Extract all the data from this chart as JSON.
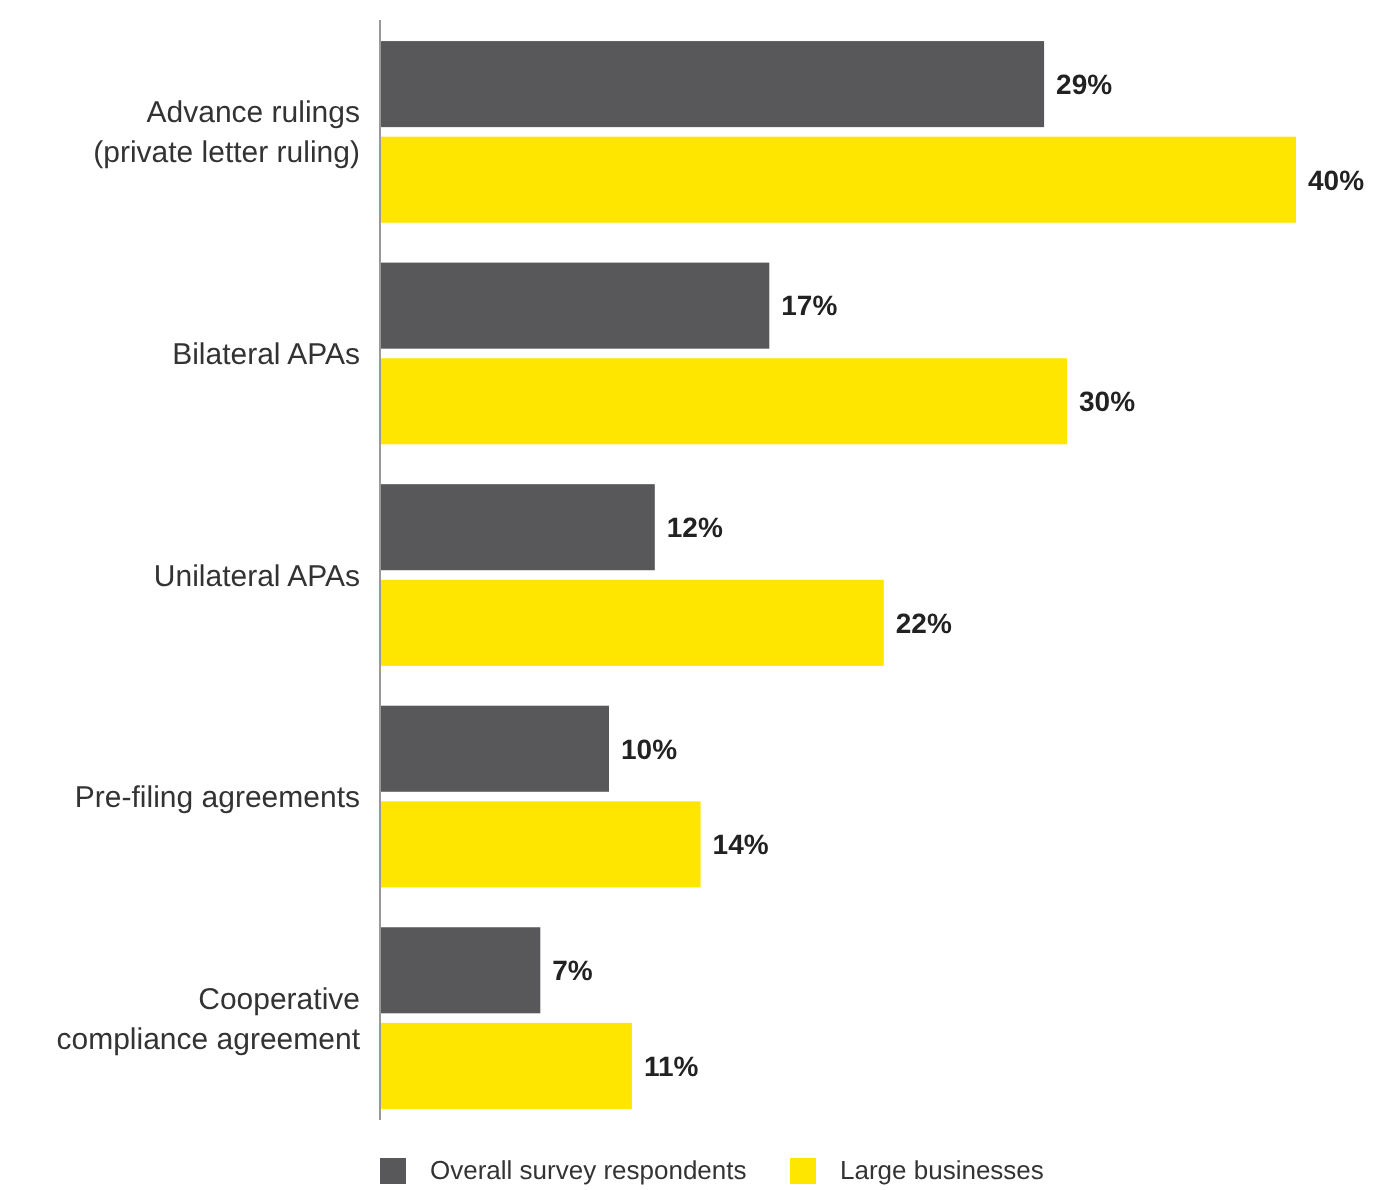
{
  "chart_data": {
    "type": "bar",
    "orientation": "horizontal",
    "categories": [
      "Advance rulings\n(private letter ruling)",
      "Bilateral APAs",
      "Unilateral APAs",
      "Pre-filing agreements",
      "Cooperative\ncompliance agreement"
    ],
    "series": [
      {
        "name": "Overall survey respondents",
        "color": "#58585a",
        "values": [
          29,
          17,
          12,
          10,
          7
        ],
        "value_labels": [
          "29%",
          "17%",
          "12%",
          "10%",
          "7%"
        ]
      },
      {
        "name": "Large businesses",
        "color": "#ffe600",
        "values": [
          40,
          30,
          22,
          14,
          11
        ],
        "value_labels": [
          "40%",
          "30%",
          "22%",
          "14%",
          "11%"
        ]
      }
    ],
    "legend": "bottom"
  }
}
